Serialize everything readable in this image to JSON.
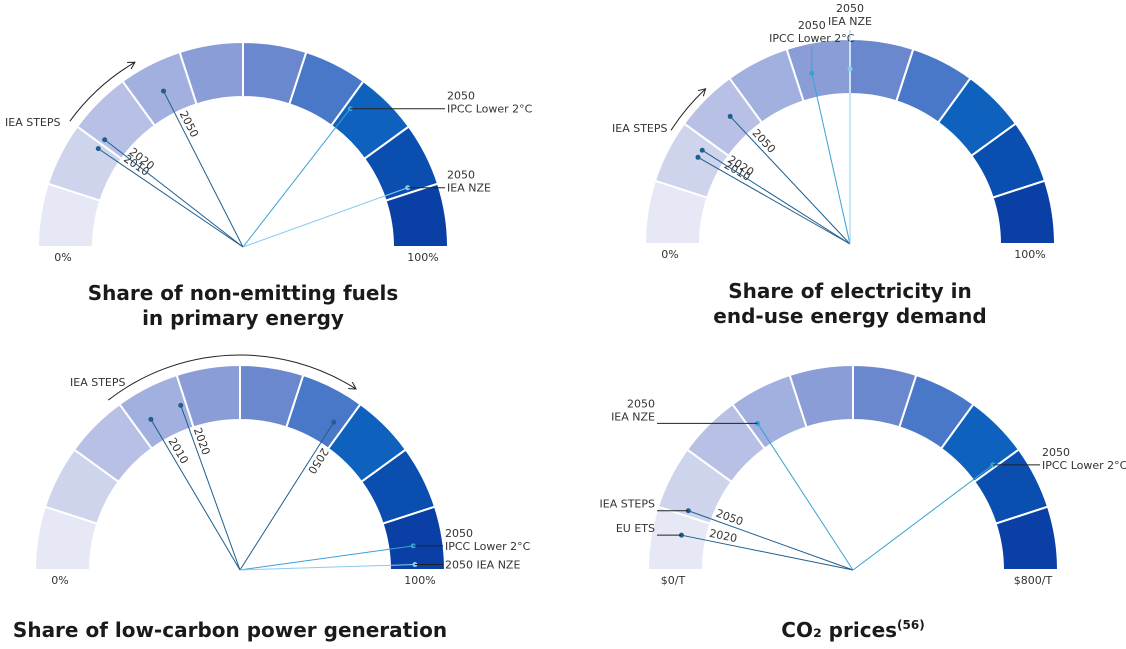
{
  "chart_data": [
    {
      "type": "gauge",
      "title": [
        "Share of non-emitting fuels",
        "in primary energy"
      ],
      "annotation": "IEA STEPS",
      "ylim": [
        0,
        100
      ],
      "yticks": [
        {
          "value": 0,
          "label": "0%"
        },
        {
          "value": 100,
          "label": "100%"
        }
      ],
      "colors": [
        "#e6e8f5",
        "#ced4ec",
        "#b8c1e5",
        "#a1b0de",
        "#8b9dd6",
        "#6b88cf",
        "#4a78c8",
        "#0e62bd",
        "#0a4fb0",
        "#0a3fa6"
      ],
      "markers": [
        {
          "value": 19,
          "year": "2010",
          "color": "#1f5e8e"
        },
        {
          "value": 21,
          "year": "2020",
          "color": "#1f5e8e"
        },
        {
          "value": 35,
          "year": "2050",
          "color": "#1f5e8e"
        },
        {
          "value": 71,
          "callout": [
            "2050",
            "IPCC Lower 2°C"
          ],
          "color": "#3aa0d8"
        },
        {
          "value": 89,
          "callout": [
            "2050",
            "IEA NZE"
          ],
          "color": "#8ccbee"
        }
      ]
    },
    {
      "type": "gauge",
      "title": [
        "Share of electricity in",
        "end-use energy demand"
      ],
      "annotation": "IEA STEPS",
      "ylim": [
        0,
        100
      ],
      "yticks": [
        {
          "value": 0,
          "label": "0%"
        },
        {
          "value": 100,
          "label": "100%"
        }
      ],
      "colors": [
        "#e6e8f5",
        "#ced4ec",
        "#b8c1e5",
        "#a1b0de",
        "#8b9dd6",
        "#6b88cf",
        "#4a78c8",
        "#0e62bd",
        "#0a4fb0",
        "#0a3fa6"
      ],
      "markers": [
        {
          "value": 16.5,
          "year": "2010",
          "color": "#1f5e8e"
        },
        {
          "value": 18,
          "year": "2020",
          "color": "#1f5e8e"
        },
        {
          "value": 26,
          "year": "2050",
          "color": "#1f5e8e"
        },
        {
          "value": 43,
          "callout": [
            "2050",
            "IPCC Lower 2°C"
          ],
          "color": "#3aa0d8"
        },
        {
          "value": 50,
          "callout": [
            "2050",
            "IEA NZE"
          ],
          "color": "#8ccbee"
        }
      ]
    },
    {
      "type": "gauge",
      "title": [
        "Share of low-carbon power generation"
      ],
      "annotation": "IEA STEPS",
      "ylim": [
        0,
        100
      ],
      "yticks": [
        {
          "value": 0,
          "label": "0%"
        },
        {
          "value": 100,
          "label": "100%"
        }
      ],
      "colors": [
        "#e6e8f5",
        "#ced4ec",
        "#b8c1e5",
        "#a1b0de",
        "#8b9dd6",
        "#6b88cf",
        "#4a78c8",
        "#0e62bd",
        "#0a4fb0",
        "#0a3fa6"
      ],
      "markers": [
        {
          "value": 33,
          "year": "2010",
          "color": "#1f5e8e"
        },
        {
          "value": 39,
          "year": "2020",
          "color": "#1f5e8e"
        },
        {
          "value": 68,
          "year": "2050",
          "color": "#1f5e8e"
        },
        {
          "value": 95.6,
          "callout": [
            "2050",
            "IPCC Lower 2°C"
          ],
          "color": "#3aa0d8"
        },
        {
          "value": 99,
          "callout": [
            "2050 IEA NZE"
          ],
          "color": "#8ccbee"
        }
      ]
    },
    {
      "type": "gauge",
      "title": [
        "CO₂ prices"
      ],
      "title_note": "(56)",
      "ylim": [
        0,
        800
      ],
      "yticks": [
        {
          "value": 0,
          "label": "$0/T"
        },
        {
          "value": 800,
          "label": "$800/T"
        }
      ],
      "colors": [
        "#e6e8f5",
        "#ced4ec",
        "#b8c1e5",
        "#a1b0de",
        "#8b9dd6",
        "#6b88cf",
        "#4a78c8",
        "#0e62bd",
        "#0a4fb0",
        "#0a3fa6"
      ],
      "markers": [
        {
          "value": 51,
          "year": "2020",
          "callout": [
            "EU ETS"
          ],
          "color": "#1f5e8e"
        },
        {
          "value": 88,
          "year": "2050",
          "callout": [
            "IEA STEPS"
          ],
          "color": "#1f5e8e"
        },
        {
          "value": 253,
          "callout": [
            "2050",
            "IEA NZE"
          ],
          "color": "#3aa0d8"
        },
        {
          "value": 636,
          "callout": [
            "2050",
            "IPCC Lower 2°C"
          ],
          "color": "#3aa0d8"
        }
      ]
    }
  ]
}
